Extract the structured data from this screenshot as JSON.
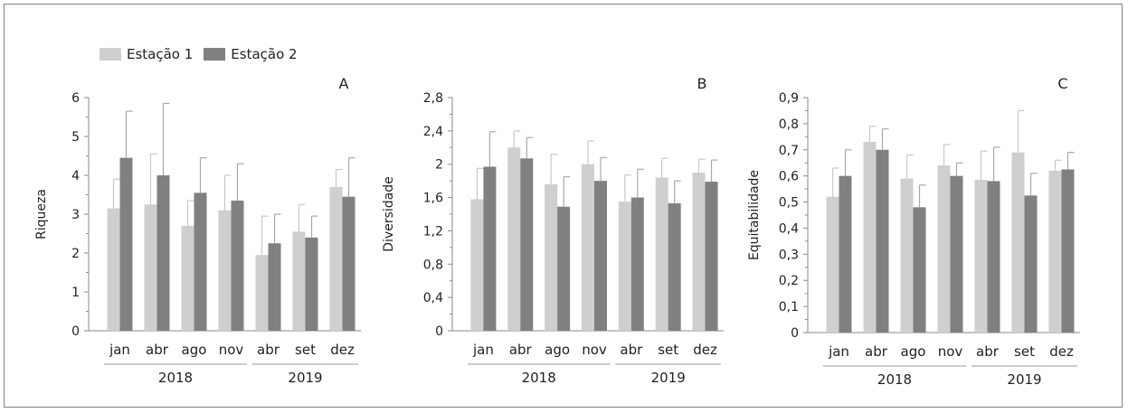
{
  "legend": [
    {
      "name": "Estação 1",
      "color": "#cfcfcf"
    },
    {
      "name": "Estação 2",
      "color": "#808080"
    }
  ],
  "chart_data": [
    {
      "type": "bar",
      "panel_label": "A",
      "ylabel": "Riqueza",
      "ylim": [
        0,
        6
      ],
      "yticks": [
        "0",
        "1",
        "2",
        "3",
        "4",
        "5",
        "6"
      ],
      "categories": [
        "jan",
        "abr",
        "ago",
        "nov",
        "abr",
        "set",
        "dez"
      ],
      "groups": [
        {
          "label": "2018",
          "count": 4
        },
        {
          "label": "2019",
          "count": 3
        }
      ],
      "series": [
        {
          "name": "Estação 1",
          "color": "#cfcfcf",
          "values": [
            3.15,
            3.25,
            2.7,
            3.1,
            1.95,
            2.55,
            3.7
          ],
          "errors": [
            0.75,
            1.3,
            0.65,
            0.9,
            1.0,
            0.7,
            0.45
          ]
        },
        {
          "name": "Estação 2",
          "color": "#808080",
          "values": [
            4.45,
            4.0,
            3.55,
            3.35,
            2.25,
            2.4,
            3.45
          ],
          "errors": [
            1.2,
            1.85,
            0.9,
            0.95,
            0.75,
            0.55,
            1.0
          ]
        }
      ]
    },
    {
      "type": "bar",
      "panel_label": "B",
      "ylabel": "Diversidade",
      "ylim": [
        0,
        2.8
      ],
      "yticks": [
        "0",
        "0,4",
        "0,8",
        "1,2",
        "1,6",
        "2",
        "2,4",
        "2,8"
      ],
      "categories": [
        "jan",
        "abr",
        "ago",
        "nov",
        "abr",
        "set",
        "dez"
      ],
      "groups": [
        {
          "label": "2018",
          "count": 4
        },
        {
          "label": "2019",
          "count": 3
        }
      ],
      "series": [
        {
          "name": "Estação 1",
          "color": "#cfcfcf",
          "values": [
            1.58,
            2.2,
            1.76,
            2.0,
            1.55,
            1.84,
            1.9
          ],
          "errors": [
            0.37,
            0.2,
            0.36,
            0.28,
            0.32,
            0.23,
            0.16
          ]
        },
        {
          "name": "Estação 2",
          "color": "#808080",
          "values": [
            1.97,
            2.07,
            1.49,
            1.8,
            1.6,
            1.53,
            1.79
          ],
          "errors": [
            0.42,
            0.25,
            0.36,
            0.28,
            0.34,
            0.27,
            0.26
          ]
        }
      ]
    },
    {
      "type": "bar",
      "panel_label": "C",
      "ylabel": "Equitabilidade",
      "ylim": [
        0,
        0.9
      ],
      "yticks": [
        "0",
        "0,1",
        "0,2",
        "0,3",
        "0,4",
        "0,5",
        "0,6",
        "0,7",
        "0,8",
        "0,9"
      ],
      "categories": [
        "jan",
        "abr",
        "ago",
        "nov",
        "abr",
        "set",
        "dez"
      ],
      "groups": [
        {
          "label": "2018",
          "count": 4
        },
        {
          "label": "2019",
          "count": 3
        }
      ],
      "series": [
        {
          "name": "Estação 1",
          "color": "#cfcfcf",
          "values": [
            0.52,
            0.73,
            0.59,
            0.64,
            0.585,
            0.69,
            0.62
          ],
          "errors": [
            0.11,
            0.06,
            0.09,
            0.08,
            0.11,
            0.16,
            0.04
          ]
        },
        {
          "name": "Estação 2",
          "color": "#808080",
          "values": [
            0.6,
            0.7,
            0.48,
            0.6,
            0.58,
            0.525,
            0.625
          ],
          "errors": [
            0.1,
            0.08,
            0.085,
            0.05,
            0.13,
            0.085,
            0.065
          ]
        }
      ]
    }
  ]
}
